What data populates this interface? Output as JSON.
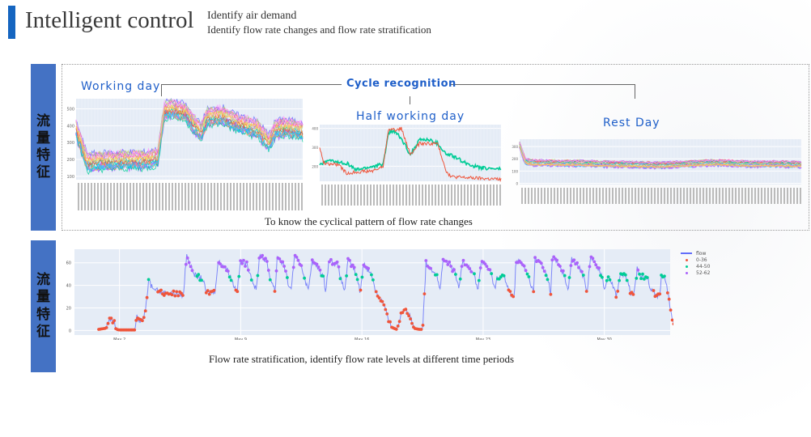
{
  "header": {
    "title": "Intelligent control",
    "subtitle_line1": "Identify air demand",
    "subtitle_line2": "Identify flow rate changes and flow rate stratification",
    "accent_color": "#1565c0"
  },
  "section1": {
    "side_label": [
      "流",
      "量",
      "特",
      "征"
    ],
    "cycle_label": "Cycle recognition",
    "caption": "To know the cyclical pattern of flow rate changes"
  },
  "section2": {
    "side_label": [
      "流",
      "量",
      "特",
      "征"
    ],
    "caption": "Flow rate stratification, identify flow rate levels at different time periods"
  },
  "chart_data": [
    {
      "type": "line",
      "title": "Working day",
      "xlabel": "",
      "ylabel": "",
      "ylim": [
        80,
        560
      ],
      "yticks": [
        100,
        200,
        300,
        400,
        500
      ],
      "grid": true,
      "series_count": 20,
      "pattern": {
        "x": [
          0,
          0.05,
          0.1,
          0.2,
          0.3,
          0.36,
          0.39,
          0.42,
          0.48,
          0.55,
          0.58,
          0.65,
          0.7,
          0.75,
          0.8,
          0.85,
          0.88,
          0.92,
          1.0
        ],
        "y": [
          380,
          180,
          190,
          195,
          195,
          210,
          490,
          500,
          480,
          360,
          450,
          460,
          420,
          400,
          380,
          300,
          380,
          390,
          370
        ]
      }
    },
    {
      "type": "line",
      "title": "Half working day",
      "xlabel": "",
      "ylabel": "",
      "ylim": [
        120,
        420
      ],
      "yticks": [
        200,
        300,
        400
      ],
      "grid": true,
      "series": [
        {
          "name": "series-green",
          "color": "#00cc96",
          "x": [
            0,
            0.05,
            0.1,
            0.15,
            0.2,
            0.3,
            0.35,
            0.38,
            0.42,
            0.46,
            0.5,
            0.55,
            0.6,
            0.65,
            0.7,
            0.72,
            0.8,
            0.85,
            0.9,
            1.0
          ],
          "y": [
            210,
            230,
            220,
            215,
            180,
            200,
            210,
            380,
            380,
            330,
            260,
            340,
            340,
            320,
            260,
            260,
            220,
            200,
            190,
            185
          ]
        },
        {
          "name": "series-red",
          "color": "#ef553b",
          "x": [
            0,
            0.02,
            0.05,
            0.1,
            0.15,
            0.2,
            0.3,
            0.35,
            0.38,
            0.42,
            0.45,
            0.5,
            0.55,
            0.6,
            0.65,
            0.7,
            0.72,
            0.8,
            0.9,
            1.0
          ],
          "y": [
            300,
            220,
            210,
            210,
            160,
            170,
            175,
            200,
            400,
            390,
            400,
            260,
            320,
            320,
            320,
            170,
            145,
            140,
            135,
            130
          ]
        }
      ]
    },
    {
      "type": "line",
      "title": "Rest Day",
      "xlabel": "",
      "ylabel": "",
      "ylim": [
        -10,
        360
      ],
      "yticks": [
        0,
        100,
        200,
        300
      ],
      "grid": true,
      "series_count": 20,
      "pattern": {
        "x": [
          0,
          0.02,
          0.05,
          0.2,
          0.4,
          0.5,
          0.6,
          0.7,
          0.8,
          0.9,
          1.0
        ],
        "y": [
          320,
          180,
          170,
          165,
          155,
          150,
          160,
          170,
          160,
          160,
          155
        ]
      }
    },
    {
      "type": "scatter",
      "title": "",
      "xlabel": "",
      "ylabel": "",
      "ylim": [
        -4,
        72
      ],
      "yticks": [
        0,
        20,
        40,
        60
      ],
      "xticks": [
        "May 2\n2021",
        "May 9",
        "May 16",
        "May 23",
        "May 30"
      ],
      "xrange_days": [
        -2.6,
        31.8
      ],
      "grid": true,
      "legend_position": "top-right",
      "series": [
        {
          "name": "flow",
          "color": "#636efa",
          "mode": "line"
        },
        {
          "name": "0-36",
          "color": "#ef553b",
          "mode": "markers"
        },
        {
          "name": "44-50",
          "color": "#00cc96",
          "mode": "markers"
        },
        {
          "name": "52-62",
          "color": "#ab63fa",
          "mode": "markers"
        }
      ],
      "flow_profile": [
        [
          -1.2,
          1
        ],
        [
          -0.8,
          2
        ],
        [
          -0.6,
          9
        ],
        [
          -0.3,
          8
        ],
        [
          -0.2,
          1
        ],
        [
          0.0,
          0.5
        ],
        [
          0.9,
          0.5
        ],
        [
          1.0,
          16
        ],
        [
          1.1,
          10
        ],
        [
          1.3,
          8
        ],
        [
          1.5,
          18
        ],
        [
          1.6,
          30
        ],
        [
          1.7,
          49
        ],
        [
          1.8,
          40
        ],
        [
          2.1,
          38
        ],
        [
          2.3,
          34
        ],
        [
          3.0,
          33
        ],
        [
          3.5,
          32
        ],
        [
          3.7,
          31
        ],
        [
          3.8,
          55
        ],
        [
          3.9,
          68
        ],
        [
          4.1,
          57
        ],
        [
          4.4,
          48
        ],
        [
          4.8,
          46
        ],
        [
          5.0,
          34
        ],
        [
          5.5,
          34
        ],
        [
          5.7,
          61
        ],
        [
          6.0,
          58
        ],
        [
          6.3,
          52
        ],
        [
          6.6,
          40
        ],
        [
          6.8,
          35
        ],
        [
          7.0,
          62
        ],
        [
          7.4,
          58
        ],
        [
          7.6,
          48
        ],
        [
          7.9,
          35
        ],
        [
          8.1,
          68
        ],
        [
          8.5,
          61
        ],
        [
          8.7,
          47
        ],
        [
          9.0,
          35
        ],
        [
          9.1,
          66
        ],
        [
          9.5,
          58
        ],
        [
          9.7,
          44
        ],
        [
          9.9,
          35
        ],
        [
          10.1,
          65
        ],
        [
          10.5,
          58
        ],
        [
          10.7,
          46
        ],
        [
          10.9,
          35
        ],
        [
          11.1,
          61
        ],
        [
          11.5,
          55
        ],
        [
          11.8,
          46
        ],
        [
          11.9,
          35
        ],
        [
          12.1,
          63
        ],
        [
          12.6,
          58
        ],
        [
          12.8,
          45
        ],
        [
          13.0,
          35
        ],
        [
          13.2,
          62
        ],
        [
          13.5,
          56
        ],
        [
          13.7,
          48
        ],
        [
          13.9,
          34
        ],
        [
          14.1,
          60
        ],
        [
          14.3,
          55
        ],
        [
          14.6,
          48
        ],
        [
          14.8,
          34
        ],
        [
          15.0,
          30
        ],
        [
          15.3,
          22
        ],
        [
          15.5,
          10
        ],
        [
          15.7,
          3
        ],
        [
          16.0,
          1
        ],
        [
          16.3,
          16
        ],
        [
          16.5,
          20
        ],
        [
          16.8,
          12
        ],
        [
          17.0,
          2
        ],
        [
          17.3,
          1
        ],
        [
          17.5,
          1
        ],
        [
          17.7,
          60
        ],
        [
          18.0,
          55
        ],
        [
          18.3,
          50
        ],
        [
          18.5,
          36
        ],
        [
          18.7,
          62
        ],
        [
          19.1,
          58
        ],
        [
          19.4,
          50
        ],
        [
          19.6,
          36
        ],
        [
          19.8,
          62
        ],
        [
          20.2,
          57
        ],
        [
          20.5,
          48
        ],
        [
          20.7,
          36
        ],
        [
          20.9,
          62
        ],
        [
          21.3,
          55
        ],
        [
          21.5,
          48
        ],
        [
          21.7,
          36
        ],
        [
          21.8,
          48
        ],
        [
          22.2,
          48
        ],
        [
          22.5,
          34
        ],
        [
          22.8,
          30
        ],
        [
          22.9,
          63
        ],
        [
          23.3,
          58
        ],
        [
          23.6,
          48
        ],
        [
          23.9,
          34
        ],
        [
          24.0,
          63
        ],
        [
          24.4,
          58
        ],
        [
          24.7,
          48
        ],
        [
          24.9,
          34
        ],
        [
          25.0,
          65
        ],
        [
          25.4,
          58
        ],
        [
          25.7,
          48
        ],
        [
          25.9,
          34
        ],
        [
          26.1,
          63
        ],
        [
          26.5,
          57
        ],
        [
          26.8,
          48
        ],
        [
          27.0,
          34
        ],
        [
          27.2,
          65
        ],
        [
          27.6,
          56
        ],
        [
          27.9,
          48
        ],
        [
          28.0,
          34
        ],
        [
          28.2,
          50
        ],
        [
          28.5,
          40
        ],
        [
          28.7,
          30
        ],
        [
          28.9,
          50
        ],
        [
          29.3,
          47
        ],
        [
          29.5,
          34
        ],
        [
          29.7,
          30
        ],
        [
          29.9,
          55
        ],
        [
          30.1,
          48
        ],
        [
          30.5,
          48
        ],
        [
          30.7,
          35
        ],
        [
          31.0,
          32
        ],
        [
          31.2,
          30
        ],
        [
          31.3,
          50
        ],
        [
          31.5,
          48
        ],
        [
          31.7,
          30
        ],
        [
          31.9,
          10
        ],
        [
          32.1,
          3
        ],
        [
          32.3,
          2
        ]
      ]
    }
  ]
}
